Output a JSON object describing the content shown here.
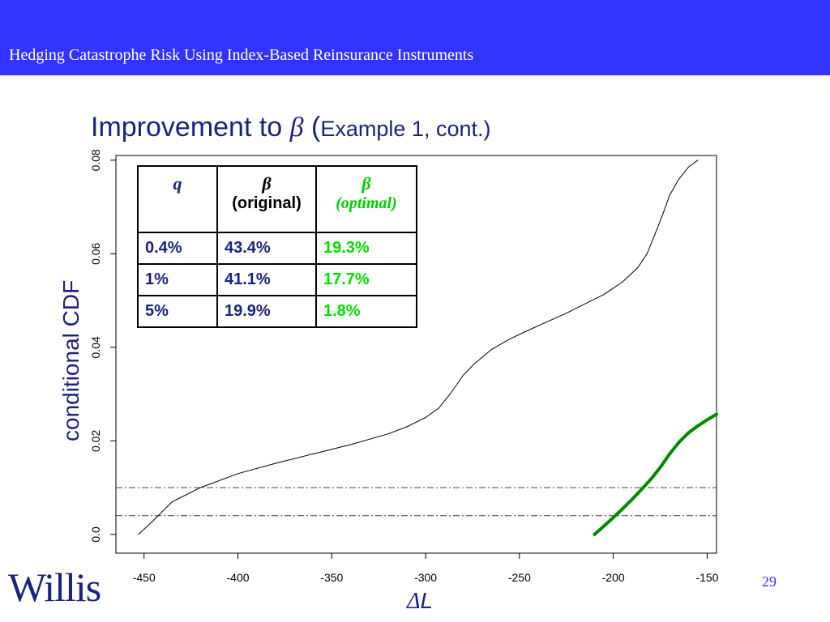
{
  "header": {
    "title": "Hedging Catastrophe Risk Using Index-Based Reinsurance Instruments"
  },
  "slide": {
    "title_prefix": "Improvement to ",
    "title_beta": "β",
    "title_suffix": " (",
    "title_small": "Example 1, cont.)",
    "page_number": "29",
    "logo": "Willis"
  },
  "table": {
    "headers": [
      {
        "symbol": "q",
        "sub": ""
      },
      {
        "symbol": "β",
        "sub": "(original)"
      },
      {
        "symbol": "β",
        "sub": "(optimal)"
      }
    ],
    "rows": [
      [
        "0.4%",
        "43.4%",
        "19.3%"
      ],
      [
        "1%",
        "41.1%",
        "17.7%"
      ],
      [
        "5%",
        "19.9%",
        "1.8%"
      ]
    ]
  },
  "chart_data": {
    "type": "line",
    "xlabel_delta": "Δ",
    "xlabel_var": "L",
    "ylabel": "conditional CDF",
    "xlim": [
      -465,
      -145
    ],
    "ylim": [
      -0.004,
      0.081
    ],
    "xticks": [
      -450,
      -400,
      -350,
      -300,
      -250,
      -200,
      -150
    ],
    "xtick_labels": [
      "-450",
      "-400",
      "-350",
      "-300",
      "-250",
      "-200",
      "-150"
    ],
    "yticks": [
      0.0,
      0.02,
      0.04,
      0.06,
      0.08
    ],
    "ytick_labels": [
      "0.0",
      "0.02",
      "0.04",
      "0.06",
      "0.08"
    ],
    "hlines": [
      0.004,
      0.01
    ],
    "series": [
      {
        "color": "#000000",
        "x": [
          -453,
          -445,
          -435,
          -420,
          -400,
          -380,
          -360,
          -340,
          -320,
          -310,
          -300,
          -293,
          -287,
          -280,
          -274,
          -265,
          -255,
          -245,
          -235,
          -225,
          -215,
          -205,
          -195,
          -187,
          -182,
          -178,
          -174,
          -170,
          -165,
          -160,
          -155
        ],
        "y": [
          0.0,
          0.003,
          0.007,
          0.01,
          0.013,
          0.0152,
          0.0172,
          0.0192,
          0.0215,
          0.023,
          0.025,
          0.027,
          0.03,
          0.034,
          0.0365,
          0.0395,
          0.0418,
          0.0437,
          0.0455,
          0.0473,
          0.0493,
          0.0513,
          0.054,
          0.057,
          0.06,
          0.064,
          0.068,
          0.0725,
          0.076,
          0.0785,
          0.08
        ]
      },
      {
        "color": "#008800",
        "x": [
          -210,
          -205,
          -200,
          -195,
          -190,
          -185,
          -180,
          -175,
          -170,
          -165,
          -160,
          -155,
          -150,
          -145
        ],
        "y": [
          0.0,
          0.0018,
          0.0036,
          0.0055,
          0.0075,
          0.0096,
          0.0118,
          0.0143,
          0.0172,
          0.0197,
          0.0217,
          0.0232,
          0.0245,
          0.0257
        ]
      }
    ]
  }
}
